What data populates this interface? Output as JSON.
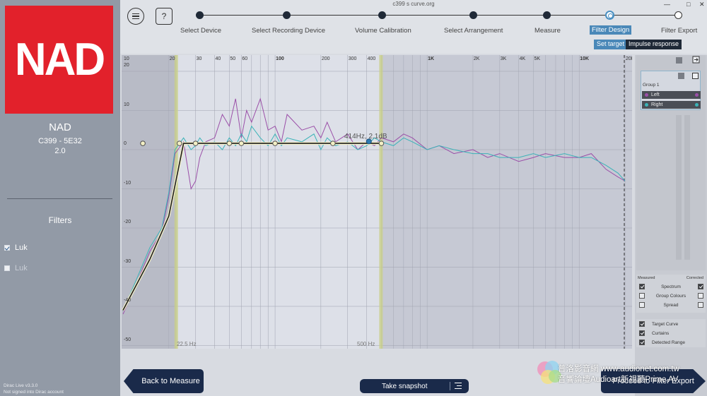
{
  "sidebar": {
    "logo_text": "NAD",
    "brand": "NAD",
    "model": "C399 - 5E32",
    "version": "2.0",
    "filters_title": "Filters",
    "filters": [
      {
        "label": "Luk",
        "checked": true
      },
      {
        "label": "Luk",
        "checked": false
      }
    ],
    "app_version": "Dirac Live v3.3.0",
    "account_status": "Not signed into Dirac account"
  },
  "topbar": {
    "file_title": "c399 s curve.org",
    "help_label": "?",
    "win_min": "—",
    "win_max": "□",
    "win_close": "✕",
    "steps": [
      {
        "label": "Select Device"
      },
      {
        "label": "Select Recording Device"
      },
      {
        "label": "Volume Calibration"
      },
      {
        "label": "Select Arrangement"
      },
      {
        "label": "Measure"
      },
      {
        "label": "Filter Design"
      },
      {
        "label": "Filter Export"
      }
    ],
    "tabs": {
      "set_target": "Set target",
      "impulse_response": "Impulse response"
    }
  },
  "graph": {
    "x_ticks": [
      "10",
      "20",
      "30",
      "40",
      "50",
      "60",
      "100",
      "200",
      "300",
      "400",
      "1K",
      "2K",
      "3K",
      "4K",
      "5K",
      "10K",
      "20K"
    ],
    "y_ticks": [
      "20",
      "10",
      "0",
      "-10",
      "-20",
      "-30",
      "-40",
      "-50"
    ],
    "range_low": "22.5 Hz",
    "range_high": "500 Hz",
    "point_readout": "414Hz, 2.1dB"
  },
  "chart_data": {
    "type": "line",
    "x_scale": "log",
    "xlim": [
      10,
      20000
    ],
    "ylim": [
      -50,
      20
    ],
    "ylabel": "",
    "xlabel": "",
    "correction_range_hz": [
      22.5,
      500
    ],
    "series": [
      {
        "color": "#9b4fa8",
        "x": [
          10,
          12,
          15,
          18,
          20,
          22,
          25,
          28,
          30,
          32,
          35,
          40,
          45,
          50,
          55,
          60,
          65,
          70,
          80,
          90,
          100,
          110,
          120,
          150,
          180,
          200,
          220,
          250,
          300,
          350,
          400,
          450,
          500,
          600,
          700,
          800,
          1000,
          1200,
          1500,
          2000,
          2500,
          3000,
          4000,
          5000,
          6000,
          8000,
          10000,
          12000,
          15000,
          18000,
          20000
        ],
        "y": [
          -42,
          -35,
          -26,
          -21,
          -12,
          -1,
          2,
          -10,
          -8,
          -2,
          2,
          3,
          9,
          6,
          13,
          3,
          10,
          7,
          13,
          5,
          6,
          2,
          9,
          5,
          6,
          3,
          7,
          2,
          4,
          0,
          2,
          1,
          3,
          2,
          4,
          3,
          0,
          1,
          -1,
          0,
          -2,
          -1,
          -3,
          -2,
          -1,
          -2,
          -2,
          -1,
          -5,
          -7,
          -8
        ]
      },
      {
        "color": "#3bb3b8",
        "x": [
          10,
          12,
          15,
          18,
          20,
          22,
          25,
          28,
          30,
          32,
          35,
          40,
          45,
          50,
          55,
          60,
          65,
          70,
          80,
          90,
          100,
          110,
          120,
          150,
          180,
          200,
          220,
          250,
          300,
          350,
          400,
          450,
          500,
          600,
          700,
          800,
          1000,
          1200,
          1500,
          2000,
          2500,
          3000,
          4000,
          5000,
          6000,
          8000,
          10000,
          12000,
          15000,
          18000,
          20000
        ],
        "y": [
          -41,
          -34,
          -25,
          -20,
          -11,
          0,
          3,
          0,
          1,
          3,
          1,
          2,
          0,
          3,
          1,
          4,
          2,
          6,
          3,
          1,
          4,
          1,
          3,
          2,
          4,
          0,
          3,
          1,
          2,
          0,
          1,
          3,
          2,
          1,
          3,
          2,
          0,
          1,
          0,
          -1,
          -1,
          -2,
          -2,
          -1,
          -2,
          -1,
          -2,
          -2,
          -4,
          -6,
          -8
        ]
      },
      {
        "color": "#1e1e1e",
        "x": [
          10,
          15,
          20,
          25,
          500
        ],
        "y": [
          -41,
          -28,
          -17,
          1.6,
          1.6
        ]
      }
    ]
  }
}
